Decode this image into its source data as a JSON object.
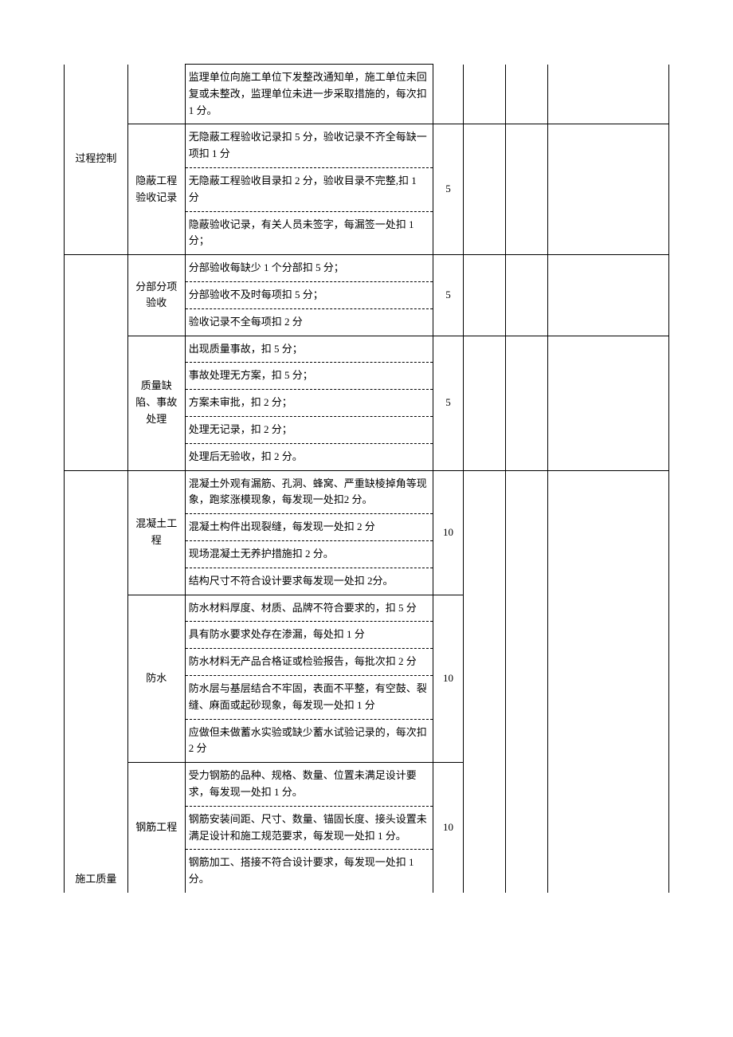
{
  "table": {
    "columns": {
      "cat_width": "10.5%",
      "sub_width": "9.5%",
      "desc_width": "41%",
      "score_width": "5%",
      "e1_width": "7%",
      "e2_width": "7%",
      "e3_width": "20%"
    },
    "border_color": "#000000",
    "font_size": 13,
    "rows": [
      {
        "cat": "",
        "sub": "",
        "desc": "监理单位向施工单位下发整改通知单，施工单位未回复或未整改，监理单位未进一步采取措施的，每次扣 1 分。",
        "score": ""
      },
      {
        "cat": "过程控制",
        "sub": "隐蔽工程验收记录",
        "items": [
          "无隐蔽工程验收记录扣 5 分，验收记录不齐全每缺一项扣 1 分",
          "无隐蔽工程验收目录扣 2 分，验收目录不完整,扣 1 分",
          "隐蔽验收记录，有关人员未签字，每漏签一处扣 1 分；"
        ],
        "score": "5"
      },
      {
        "sub": "分部分项验收",
        "items": [
          "分部验收每缺少 1 个分部扣 5 分；",
          "分部验收不及时每项扣 5 分；",
          "验收记录不全每项扣 2 分"
        ],
        "score": "5"
      },
      {
        "sub": "质量缺陷、事故处理",
        "items": [
          "出现质量事故，扣 5 分；",
          "事故处理无方案，扣 5 分；",
          "方案未审批，扣 2 分；",
          "处理无记录，扣 2 分；",
          "处理后无验收，扣 2 分。"
        ],
        "score": "5"
      },
      {
        "cat": "施工质量",
        "sub": "混凝土工程",
        "items": [
          "混凝土外观有漏筋、孔洞、蜂窝、严重缺棱掉角等现象，跑浆涨模现象，每发现一处扣2 分。",
          "混凝土构件出现裂缝，每发现一处扣 2 分",
          "现场混凝土无养护措施扣 2 分。",
          "结构尺寸不符合设计要求每发现一处扣 2分。"
        ],
        "score": "10"
      },
      {
        "sub": "防水",
        "items": [
          "防水材料厚度、材质、品牌不符合要求的，扣 5 分",
          "具有防水要求处存在渗漏，每处扣 1 分",
          "防水材料无产品合格证或检验报告，每批次扣 2 分",
          "防水层与基层结合不牢固，表面不平整，有空鼓、裂缝、麻面或起砂现象，每发现一处扣 1 分",
          "应做但未做蓄水实验或缺少蓄水试验记录的，每次扣 2 分"
        ],
        "score": "10"
      },
      {
        "sub": "钢筋工程",
        "items": [
          "受力钢筋的品种、规格、数量、位置未满足设计要求，每发现一处扣 1 分。",
          "钢筋安装间距、尺寸、数量、锚固长度、接头设置未满足设计和施工规范要求，每发现一处扣 1 分。",
          "钢筋加工、搭接不符合设计要求，每发现一处扣 1 分。"
        ],
        "score": "10"
      }
    ]
  }
}
